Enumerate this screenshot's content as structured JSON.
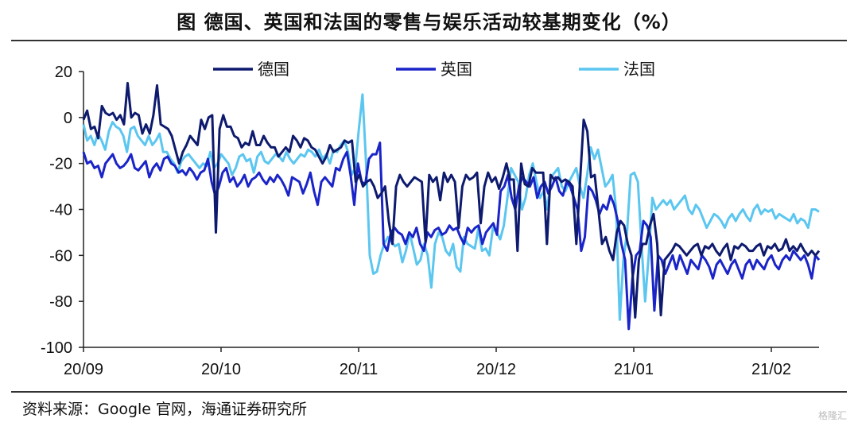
{
  "source": "资料来源：Google 官网，海通证券研究所",
  "watermark": "格隆汇",
  "chart_data": {
    "type": "line",
    "title": "图  德国、英国和法国的零售与娱乐活动较基期变化（%）",
    "xlabel": "",
    "ylabel": "",
    "ylim": [
      -100,
      20
    ],
    "yticks": [
      20,
      0,
      -20,
      -40,
      -60,
      -80,
      -100
    ],
    "x_start": "20/09",
    "x_end": "21/02",
    "xticks": [
      "20/09",
      "20/10",
      "20/11",
      "20/12",
      "21/01",
      "21/02"
    ],
    "legend_position": "top",
    "grid": false,
    "series": [
      {
        "name": "德国",
        "color": "#0d1a6e",
        "values": [
          -1,
          3,
          -5,
          -4,
          -9,
          5,
          2,
          1,
          2,
          -1,
          1,
          -3,
          15,
          0,
          2,
          1,
          -7,
          -3,
          -7,
          1,
          14,
          -3,
          -4,
          -5,
          -8,
          -14,
          -20,
          -15,
          -12,
          -8,
          -10,
          -12,
          -1,
          -5,
          0,
          1,
          -50,
          -5,
          1,
          -4,
          -4,
          -8,
          -9,
          -13,
          -11,
          -12,
          -6,
          -12,
          -12,
          -8,
          -11,
          -13,
          -13,
          -17,
          -15,
          -13,
          -15,
          -8,
          -10,
          -13,
          -9,
          -10,
          -13,
          -14,
          -17,
          -20,
          -17,
          -12,
          -15,
          -14,
          -13,
          -10,
          -11,
          -10,
          -28,
          -25,
          -30,
          -28,
          -27,
          -30,
          -35,
          -33,
          -30,
          -45,
          -55,
          -30,
          -25,
          -28,
          -30,
          -28,
          -26,
          -27,
          -28,
          -54,
          -25,
          -28,
          -26,
          -36,
          -24,
          -28,
          -25,
          -28,
          -48,
          -30,
          -25,
          -27,
          -26,
          -24,
          -46,
          -30,
          -24,
          -28,
          -26,
          -31,
          -26,
          -20,
          -27,
          -27,
          -58,
          -20,
          -29,
          -30,
          -22,
          -24,
          -24,
          -24,
          -55,
          -25,
          -27,
          -26,
          -28,
          -27,
          -28,
          -30,
          -55,
          -28,
          -1,
          -6,
          -26,
          -25,
          -40,
          -55,
          -52,
          -58,
          -62,
          -50,
          -45,
          -47,
          -55,
          -60,
          -87,
          -62,
          -55,
          -55,
          -47,
          -42,
          -55,
          -86,
          -62,
          -60,
          -58,
          -55,
          -56,
          -58,
          -60,
          -58,
          -56,
          -55,
          -60,
          -56,
          -57,
          -55,
          -58,
          -60,
          -57,
          -55,
          -62,
          -56,
          -57,
          -55,
          -56,
          -58,
          -58,
          -56,
          -55,
          -60,
          -56,
          -57,
          -55,
          -58,
          -57,
          -53,
          -58,
          -56,
          -58,
          -55,
          -58,
          -60,
          -58,
          -60,
          -58
        ],
        "dips_note": ""
      },
      {
        "name": "英国",
        "color": "#1a24c8",
        "values": [
          -15,
          -20,
          -19,
          -22,
          -21,
          -26,
          -20,
          -18,
          -16,
          -20,
          -22,
          -21,
          -19,
          -16,
          -22,
          -23,
          -21,
          -19,
          -26,
          -22,
          -20,
          -23,
          -18,
          -17,
          -20,
          -21,
          -24,
          -23,
          -25,
          -22,
          -24,
          -27,
          -24,
          -23,
          -18,
          -28,
          -34,
          -30,
          -24,
          -22,
          -28,
          -26,
          -30,
          -28,
          -25,
          -30,
          -27,
          -26,
          -24,
          -27,
          -29,
          -26,
          -28,
          -25,
          -27,
          -30,
          -34,
          -26,
          -27,
          -28,
          -33,
          -29,
          -24,
          -32,
          -38,
          -28,
          -26,
          -28,
          -30,
          -22,
          -23,
          -18,
          -15,
          -25,
          -38,
          -20,
          -28,
          -29,
          -18,
          -16,
          -16,
          -11,
          -55,
          -58,
          -50,
          -48,
          -50,
          -51,
          -55,
          -50,
          -52,
          -48,
          -55,
          -58,
          -50,
          -52,
          -49,
          -48,
          -51,
          -50,
          -47,
          -49,
          -48,
          -52,
          -55,
          -48,
          -50,
          -48,
          -47,
          -55,
          -50,
          -48,
          -46,
          -51,
          -32,
          -30,
          -25,
          -35,
          -40,
          -30,
          -26,
          -28,
          -30,
          -26,
          -35,
          -30,
          -28,
          -33,
          -30,
          -26,
          -32,
          -34,
          -28,
          -30,
          -35,
          -40,
          -58,
          -52,
          -30,
          -32,
          -36,
          -42,
          -38,
          -40,
          -34,
          -38,
          -45,
          -55,
          -62,
          -92,
          -70,
          -60,
          -58,
          -45,
          -47,
          -52,
          -84,
          -60,
          -62,
          -68,
          -64,
          -60,
          -66,
          -60,
          -64,
          -68,
          -62,
          -64,
          -66,
          -60,
          -62,
          -65,
          -70,
          -64,
          -62,
          -65,
          -68,
          -64,
          -62,
          -66,
          -70,
          -64,
          -62,
          -66,
          -62,
          -64,
          -66,
          -62,
          -60,
          -64,
          -66,
          -62,
          -60,
          -62,
          -58,
          -60,
          -62,
          -60,
          -64,
          -70,
          -60,
          -62
        ]
      },
      {
        "name": "法国",
        "color": "#5bc6f0",
        "values": [
          -3,
          -10,
          -8,
          -12,
          -7,
          -10,
          -14,
          -6,
          -2,
          -4,
          -5,
          -8,
          -15,
          -5,
          -4,
          -8,
          -10,
          -12,
          -8,
          -12,
          -10,
          -7,
          -15,
          -15,
          -18,
          -20,
          -24,
          -19,
          -17,
          -16,
          -18,
          -20,
          -22,
          -20,
          -21,
          -15,
          -22,
          -20,
          -16,
          -18,
          -20,
          -25,
          -22,
          -17,
          -16,
          -19,
          -18,
          -24,
          -17,
          -15,
          -19,
          -20,
          -18,
          -16,
          -17,
          -19,
          -15,
          -18,
          -20,
          -18,
          -16,
          -17,
          -14,
          -15,
          -17,
          -14,
          -18,
          -16,
          -20,
          -14,
          -15,
          -12,
          -10,
          -15,
          -25,
          -22,
          -5,
          10,
          -20,
          -60,
          -68,
          -67,
          -60,
          -55,
          -52,
          -54,
          -56,
          -55,
          -63,
          -58,
          -50,
          -57,
          -64,
          -62,
          -55,
          -60,
          -74,
          -55,
          -50,
          -52,
          -58,
          -60,
          -55,
          -65,
          -67,
          -52,
          -55,
          -56,
          -57,
          -48,
          -58,
          -57,
          -60,
          -48,
          -50,
          -53,
          -47,
          -35,
          -22,
          -25,
          -28,
          -40,
          -35,
          -25,
          -20,
          -28,
          -35,
          -32,
          -40,
          -26,
          -24,
          -22,
          -30,
          -32,
          -28,
          -25,
          -22,
          -30,
          -35,
          -25,
          -13,
          -18,
          -14,
          -22,
          -30,
          -28,
          -25,
          -40,
          -88,
          -62,
          -50,
          -25,
          -24,
          -28,
          -55,
          -80,
          -60,
          -35,
          -40,
          -38,
          -36,
          -38,
          -36,
          -40,
          -38,
          -36,
          -34,
          -40,
          -42,
          -38,
          -40,
          -44,
          -48,
          -45,
          -42,
          -43,
          -45,
          -48,
          -44,
          -42,
          -45,
          -42,
          -40,
          -43,
          -45,
          -40,
          -38,
          -42,
          -40,
          -41,
          -40,
          -44,
          -42,
          -43,
          -44,
          -45,
          -42,
          -46,
          -44,
          -45,
          -48,
          -40,
          -40,
          -41
        ]
      }
    ]
  }
}
